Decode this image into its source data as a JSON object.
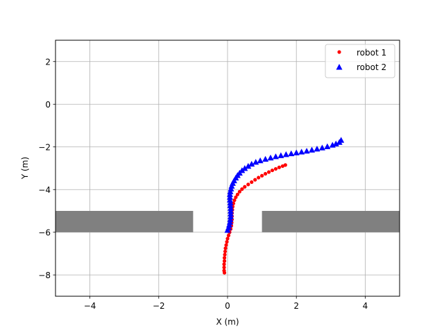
{
  "chart_data": {
    "type": "scatter",
    "title": "",
    "xlabel": "X (m)",
    "ylabel": "Y (m)",
    "xlim": [
      -5,
      5
    ],
    "ylim": [
      -9,
      3
    ],
    "xticks": [
      -4,
      -2,
      0,
      2,
      4
    ],
    "yticks": [
      -8,
      -6,
      -4,
      -2,
      0,
      2
    ],
    "xtick_labels": [
      "−4",
      "−2",
      "0",
      "2",
      "4"
    ],
    "ytick_labels": [
      "−8",
      "−6",
      "−4",
      "−2",
      "0",
      "2"
    ],
    "grid": true,
    "legend_position": "top-right",
    "obstacles": [
      {
        "x0": -5,
        "x1": -1,
        "y0": -6,
        "y1": -5,
        "color": "#808080"
      },
      {
        "x0": 1,
        "x1": 5,
        "y0": -6,
        "y1": -5,
        "color": "#808080"
      }
    ],
    "series": [
      {
        "name": "robot 1",
        "marker": "circle",
        "color": "#ff0000",
        "points": [
          [
            1.68,
            -2.85
          ],
          [
            1.6,
            -2.9
          ],
          [
            1.5,
            -2.96
          ],
          [
            1.4,
            -3.03
          ],
          [
            1.3,
            -3.1
          ],
          [
            1.2,
            -3.18
          ],
          [
            1.1,
            -3.26
          ],
          [
            1.0,
            -3.35
          ],
          [
            0.9,
            -3.44
          ],
          [
            0.8,
            -3.54
          ],
          [
            0.7,
            -3.65
          ],
          [
            0.6,
            -3.76
          ],
          [
            0.5,
            -3.87
          ],
          [
            0.42,
            -3.98
          ],
          [
            0.35,
            -4.1
          ],
          [
            0.29,
            -4.23
          ],
          [
            0.24,
            -4.36
          ],
          [
            0.2,
            -4.5
          ],
          [
            0.17,
            -4.65
          ],
          [
            0.15,
            -4.8
          ],
          [
            0.14,
            -4.95
          ],
          [
            0.13,
            -5.1
          ],
          [
            0.13,
            -5.25
          ],
          [
            0.13,
            -5.4
          ],
          [
            0.12,
            -5.55
          ],
          [
            0.11,
            -5.7
          ],
          [
            0.09,
            -5.85
          ],
          [
            0.06,
            -6.0
          ],
          [
            0.03,
            -6.15
          ],
          [
            0.0,
            -6.3
          ],
          [
            -0.02,
            -6.45
          ],
          [
            -0.04,
            -6.6
          ],
          [
            -0.06,
            -6.75
          ],
          [
            -0.07,
            -6.9
          ],
          [
            -0.08,
            -7.05
          ],
          [
            -0.09,
            -7.2
          ],
          [
            -0.09,
            -7.35
          ],
          [
            -0.1,
            -7.5
          ],
          [
            -0.1,
            -7.65
          ],
          [
            -0.1,
            -7.8
          ],
          [
            -0.09,
            -7.9
          ]
        ]
      },
      {
        "name": "robot 2",
        "marker": "triangle",
        "color": "#0000ff",
        "points": [
          [
            3.3,
            -1.68
          ],
          [
            3.25,
            -1.78
          ],
          [
            3.15,
            -1.85
          ],
          [
            3.05,
            -1.91
          ],
          [
            2.9,
            -1.98
          ],
          [
            2.75,
            -2.04
          ],
          [
            2.6,
            -2.09
          ],
          [
            2.45,
            -2.14
          ],
          [
            2.3,
            -2.19
          ],
          [
            2.15,
            -2.23
          ],
          [
            2.0,
            -2.27
          ],
          [
            1.85,
            -2.31
          ],
          [
            1.7,
            -2.35
          ],
          [
            1.55,
            -2.4
          ],
          [
            1.4,
            -2.45
          ],
          [
            1.25,
            -2.51
          ],
          [
            1.1,
            -2.57
          ],
          [
            0.95,
            -2.64
          ],
          [
            0.82,
            -2.71
          ],
          [
            0.7,
            -2.8
          ],
          [
            0.6,
            -2.9
          ],
          [
            0.5,
            -3.0
          ],
          [
            0.42,
            -3.1
          ],
          [
            0.35,
            -3.22
          ],
          [
            0.29,
            -3.33
          ],
          [
            0.24,
            -3.45
          ],
          [
            0.19,
            -3.58
          ],
          [
            0.15,
            -3.7
          ],
          [
            0.12,
            -3.83
          ],
          [
            0.1,
            -3.96
          ],
          [
            0.08,
            -4.09
          ],
          [
            0.07,
            -4.22
          ],
          [
            0.07,
            -4.35
          ],
          [
            0.07,
            -4.48
          ],
          [
            0.08,
            -4.61
          ],
          [
            0.08,
            -4.74
          ],
          [
            0.09,
            -4.87
          ],
          [
            0.09,
            -5.0
          ],
          [
            0.09,
            -5.13
          ],
          [
            0.09,
            -5.26
          ],
          [
            0.08,
            -5.39
          ],
          [
            0.07,
            -5.52
          ],
          [
            0.05,
            -5.65
          ],
          [
            0.03,
            -5.78
          ],
          [
            0.0,
            -5.9
          ]
        ]
      }
    ]
  }
}
